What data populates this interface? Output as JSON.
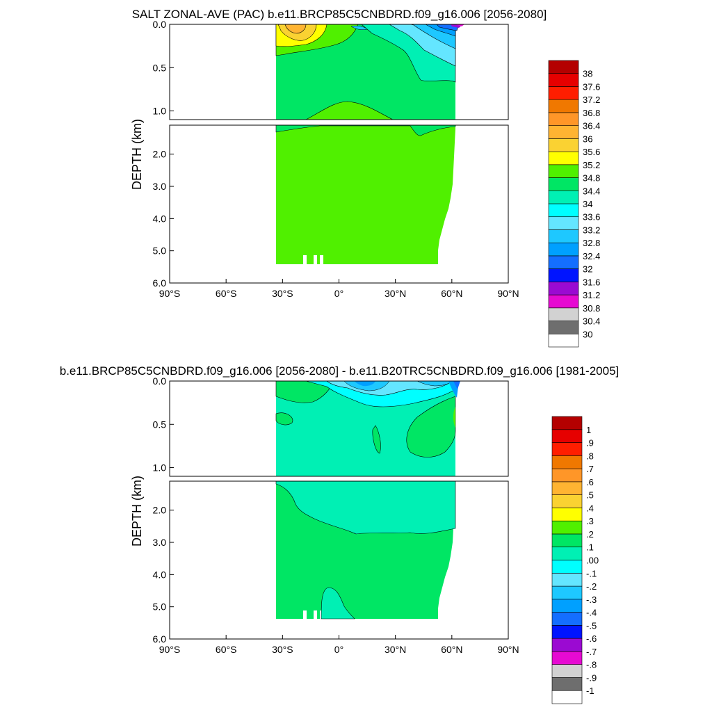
{
  "panels": [
    {
      "title": "SALT ZONAL-AVE (PAC) b.e11.BRCP85C5CNBDRD.f09_g16.006 [2056-2080]",
      "ylabel": "DEPTH (km)",
      "colorbar": {
        "labels": [
          "38",
          "37.6",
          "37.2",
          "36.8",
          "36.4",
          "36",
          "35.6",
          "35.2",
          "34.8",
          "34.4",
          "34",
          "33.6",
          "33.2",
          "32.8",
          "32.4",
          "32",
          "31.6",
          "31.2",
          "30.8",
          "30.4",
          "30"
        ]
      }
    },
    {
      "title": "b.e11.BRCP85C5CNBDRD.f09_g16.006 [2056-2080] - b.e11.B20TRC5CNBDRD.f09_g16.006 [1981-2005]",
      "ylabel": "DEPTH (km)",
      "colorbar": {
        "labels": [
          "1",
          ".9",
          ".8",
          ".7",
          ".6",
          ".5",
          ".4",
          ".3",
          ".2",
          ".1",
          ".00",
          "-.1",
          "-.2",
          "-.3",
          "-.4",
          "-.5",
          "-.6",
          "-.7",
          "-.8",
          "-.9",
          "-1"
        ]
      }
    }
  ],
  "axes": {
    "xticks": [
      "90°S",
      "60°S",
      "30°S",
      "0°",
      "30°N",
      "60°N",
      "90°N"
    ],
    "xtick_values": [
      -90,
      -60,
      -30,
      0,
      30,
      60,
      90
    ],
    "ytop_ticks": [
      "0.0",
      "0.5",
      "1.0"
    ],
    "ytop_values": [
      0,
      0.5,
      1.0
    ],
    "ybot_ticks": [
      "2.0",
      "3.0",
      "4.0",
      "5.0",
      "6.0"
    ],
    "ybot_values": [
      2,
      3,
      4,
      5,
      6
    ],
    "xlim": [
      -90,
      90
    ],
    "ylim_top_km": [
      0,
      1.1
    ],
    "ylim_bottom_km": [
      1.1,
      6.0
    ]
  },
  "colors": {
    "palette": [
      "#ffffff",
      "#6e6e6e",
      "#d2d2d2",
      "#e60ad2",
      "#9b0ad2",
      "#0014ff",
      "#146eff",
      "#00a0ff",
      "#1ec8ff",
      "#64e6ff",
      "#00ffff",
      "#00f0b4",
      "#00e664",
      "#50f000",
      "#ffff00",
      "#fad232",
      "#ffb432",
      "#ff9628",
      "#f07800",
      "#ff1e00",
      "#e60000",
      "#b40000"
    ]
  },
  "chart_data": [
    {
      "type": "heatmap",
      "title": "SALT ZONAL-AVE (PAC) b.e11.BRCP85C5CNBDRD.f09_g16.006 [2056-2080]",
      "ylabel": "DEPTH (km)",
      "xlim": [
        -90,
        90
      ],
      "ylim": [
        6.0,
        0.0
      ],
      "x_ticks": [
        "90°S",
        "60°S",
        "30°S",
        "0°",
        "30°N",
        "60°N",
        "90°N"
      ],
      "y_ticks": [
        "0.0",
        "0.5",
        "1.0",
        "2.0",
        "3.0",
        "4.0",
        "5.0",
        "6.0"
      ],
      "data_extent": {
        "lat_min": -34,
        "lat_max": 62,
        "max_depth_km": 5.4
      },
      "contour_levels": [
        30,
        30.4,
        30.8,
        31.2,
        31.6,
        32,
        32.4,
        32.8,
        33.2,
        33.6,
        34,
        34.4,
        34.8,
        35.2,
        35.6,
        36,
        36.4,
        36.8,
        37.2,
        37.6,
        38
      ],
      "features": [
        {
          "region": "deep ocean below 1.2 km",
          "range": "34.4-34.8"
        },
        {
          "region": "upper ocean 0.2-1.1 km",
          "range": "34.4-34.8, locally 34-34.4"
        },
        {
          "region": "subtropical South Pacific surface (~30°S-10°S)",
          "range": "35.2-36.4"
        },
        {
          "region": "North Pacific surface (40°N-60°N)",
          "range": "32.4-34"
        },
        {
          "region": "Arctic edge (~60°N surface)",
          "range": "31.2-32"
        }
      ]
    },
    {
      "type": "heatmap",
      "title": "b.e11.BRCP85C5CNBDRD.f09_g16.006 [2056-2080] - b.e11.B20TRC5CNBDRD.f09_g16.006 [1981-2005]",
      "ylabel": "DEPTH (km)",
      "xlim": [
        -90,
        90
      ],
      "ylim": [
        6.0,
        0.0
      ],
      "x_ticks": [
        "90°S",
        "60°S",
        "30°S",
        "0°",
        "30°N",
        "60°N",
        "90°N"
      ],
      "y_ticks": [
        "0.0",
        "0.5",
        "1.0",
        "2.0",
        "3.0",
        "4.0",
        "5.0",
        "6.0"
      ],
      "data_extent": {
        "lat_min": -34,
        "lat_max": 62,
        "max_depth_km": 5.4
      },
      "contour_levels": [
        -1,
        -0.9,
        -0.8,
        -0.7,
        -0.6,
        -0.5,
        -0.4,
        -0.3,
        -0.2,
        -0.1,
        0,
        0.1,
        0.2,
        0.3,
        0.4,
        0.5,
        0.6,
        0.7,
        0.8,
        0.9,
        1
      ],
      "features": [
        {
          "region": "upper ocean 0-1.1 km",
          "range": "-0.1-0.00"
        },
        {
          "region": "intermediate 1.2-2.7 km",
          "range": "-0.1-0.00"
        },
        {
          "region": "deep ocean below 2.7 km",
          "range": "0.00-0.1"
        },
        {
          "region": "North Pacific 40°N-60°N, 0.3-1.0 km",
          "range": "0.00-0.1"
        },
        {
          "region": "surface 0°-60°N",
          "range": "-0.5 to -0.2"
        }
      ]
    }
  ]
}
